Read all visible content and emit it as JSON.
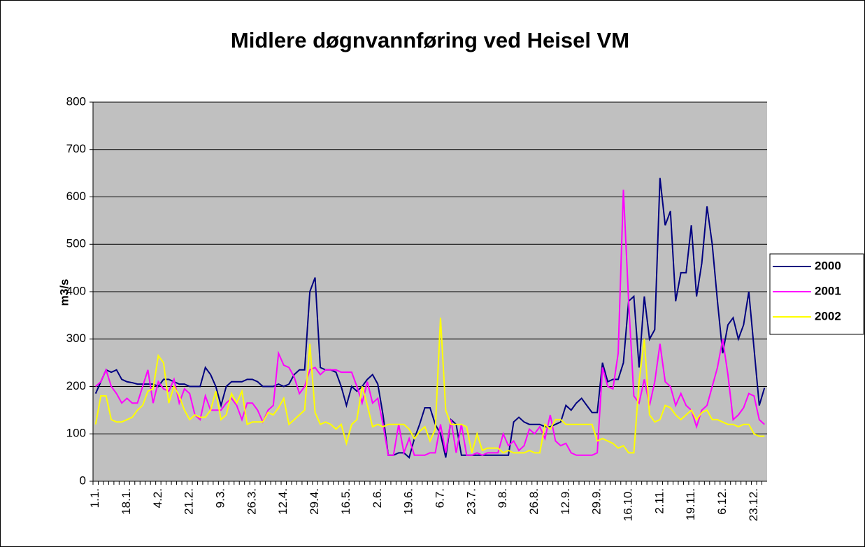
{
  "chart_data": {
    "type": "line",
    "title": "Midlere døgnvannføring ved Heisel VM",
    "y_label": "m3/s",
    "ylim": [
      0,
      800
    ],
    "yticks": [
      0,
      100,
      200,
      300,
      400,
      500,
      600,
      700,
      800
    ],
    "grid": true,
    "legend": "right",
    "categories": [
      "1.1.",
      null,
      null,
      null,
      null,
      null,
      "18.1.",
      null,
      null,
      null,
      null,
      null,
      "4.2.",
      null,
      null,
      null,
      null,
      null,
      "21.2.",
      null,
      null,
      null,
      null,
      null,
      "9.3.",
      null,
      null,
      null,
      null,
      null,
      "26.3.",
      null,
      null,
      null,
      null,
      null,
      "12.4.",
      null,
      null,
      null,
      null,
      null,
      "29.4.",
      null,
      null,
      null,
      null,
      null,
      "16.5.",
      null,
      null,
      null,
      null,
      null,
      "2.6.",
      null,
      null,
      null,
      null,
      null,
      "19.6.",
      null,
      null,
      null,
      null,
      null,
      "6.7.",
      null,
      null,
      null,
      null,
      null,
      "23.7.",
      null,
      null,
      null,
      null,
      null,
      "9.8.",
      null,
      null,
      null,
      null,
      null,
      "26.8.",
      null,
      null,
      null,
      null,
      null,
      "12.9.",
      null,
      null,
      null,
      null,
      null,
      "29.9.",
      null,
      null,
      null,
      null,
      null,
      "16.10.",
      null,
      null,
      null,
      null,
      null,
      "2.11.",
      null,
      null,
      null,
      null,
      null,
      "19.11.",
      null,
      null,
      null,
      null,
      null,
      "6.12.",
      null,
      null,
      null,
      null,
      null,
      "23.12.",
      null,
      null
    ],
    "series": [
      {
        "name": "2000",
        "color": "#000080",
        "values": [
          185,
          210,
          235,
          230,
          235,
          215,
          210,
          208,
          205,
          205,
          205,
          205,
          200,
          215,
          215,
          210,
          205,
          205,
          200,
          200,
          200,
          240,
          225,
          200,
          160,
          200,
          210,
          210,
          210,
          215,
          215,
          210,
          200,
          200,
          200,
          205,
          200,
          205,
          225,
          235,
          235,
          400,
          430,
          240,
          235,
          235,
          230,
          200,
          160,
          200,
          190,
          200,
          215,
          225,
          205,
          140,
          55,
          55,
          60,
          60,
          50,
          90,
          120,
          155,
          155,
          120,
          100,
          50,
          130,
          120,
          55,
          55,
          55,
          55,
          55,
          55,
          55,
          55,
          55,
          55,
          125,
          135,
          125,
          120,
          120,
          120,
          115,
          115,
          120,
          125,
          160,
          150,
          165,
          175,
          160,
          145,
          145,
          250,
          210,
          215,
          215,
          250,
          380,
          390,
          240,
          390,
          300,
          320,
          640,
          540,
          570,
          380,
          440,
          440,
          540,
          390,
          460,
          580,
          500,
          380,
          270,
          330,
          345,
          300,
          330,
          400,
          280,
          160,
          197
        ]
      },
      {
        "name": "2001",
        "color": "#ff00ff",
        "values": [
          200,
          210,
          235,
          200,
          185,
          165,
          175,
          165,
          165,
          200,
          235,
          165,
          210,
          195,
          190,
          215,
          165,
          195,
          185,
          140,
          130,
          180,
          150,
          150,
          150,
          165,
          175,
          160,
          130,
          165,
          165,
          150,
          125,
          150,
          160,
          270,
          245,
          240,
          220,
          185,
          200,
          235,
          240,
          225,
          235,
          235,
          235,
          230,
          230,
          230,
          200,
          165,
          210,
          165,
          175,
          120,
          55,
          55,
          120,
          60,
          90,
          55,
          55,
          55,
          60,
          60,
          120,
          60,
          130,
          60,
          120,
          55,
          55,
          60,
          55,
          60,
          60,
          60,
          100,
          75,
          85,
          65,
          75,
          110,
          100,
          115,
          90,
          140,
          85,
          75,
          80,
          60,
          55,
          55,
          55,
          55,
          60,
          240,
          200,
          195,
          270,
          615,
          380,
          180,
          165,
          215,
          160,
          210,
          290,
          210,
          200,
          160,
          185,
          160,
          150,
          115,
          150,
          160,
          200,
          240,
          300,
          225,
          130,
          140,
          155,
          185,
          180,
          130,
          120
        ]
      },
      {
        "name": "2002",
        "color": "#ffff00",
        "values": [
          120,
          180,
          180,
          130,
          125,
          125,
          130,
          135,
          150,
          160,
          190,
          195,
          265,
          250,
          165,
          200,
          180,
          150,
          130,
          140,
          135,
          135,
          150,
          190,
          130,
          140,
          185,
          165,
          190,
          120,
          125,
          125,
          125,
          145,
          140,
          155,
          175,
          120,
          130,
          140,
          150,
          290,
          145,
          120,
          125,
          120,
          110,
          120,
          80,
          120,
          130,
          200,
          160,
          115,
          120,
          115,
          120,
          120,
          120,
          120,
          110,
          90,
          105,
          115,
          85,
          110,
          345,
          150,
          120,
          120,
          120,
          115,
          60,
          100,
          65,
          70,
          70,
          70,
          60,
          65,
          60,
          60,
          60,
          65,
          60,
          60,
          120,
          110,
          130,
          130,
          120,
          120,
          120,
          120,
          120,
          120,
          85,
          90,
          85,
          80,
          70,
          75,
          60,
          60,
          210,
          300,
          140,
          125,
          130,
          160,
          155,
          140,
          130,
          140,
          150,
          130,
          145,
          150,
          130,
          130,
          125,
          120,
          120,
          115,
          120,
          120,
          100,
          95,
          95
        ]
      }
    ]
  }
}
